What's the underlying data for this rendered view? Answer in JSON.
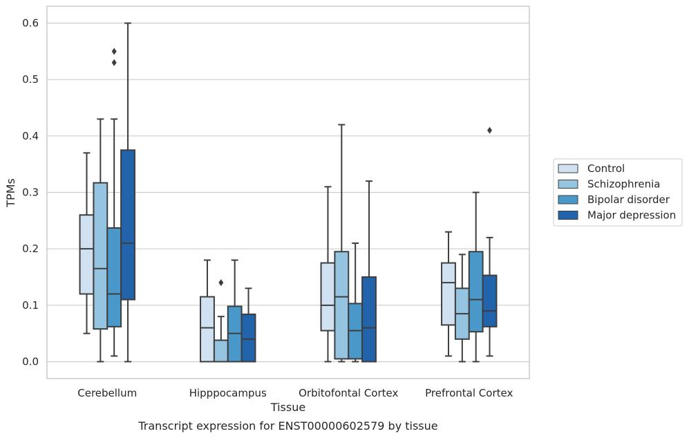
{
  "chart_data": {
    "type": "box",
    "xlabel": "Tissue",
    "ylabel": "TPMs",
    "caption": "Transcript expression for ENST00000602579 by tissue",
    "ylim": [
      -0.03,
      0.63
    ],
    "yticks": [
      0.0,
      0.1,
      0.2,
      0.3,
      0.4,
      0.5,
      0.6
    ],
    "ytick_labels": [
      "0.0",
      "0.1",
      "0.2",
      "0.3",
      "0.4",
      "0.5",
      "0.6"
    ],
    "grid": "horizontal",
    "legend_position": "outside-right",
    "categories": [
      "Cerebellum",
      "Hipppocampus",
      "Orbitofontal Cortex",
      "Prefrontal Cortex"
    ],
    "series": [
      {
        "name": "Control",
        "color": "#d0e1f2",
        "boxes": [
          {
            "whisker_low": 0.05,
            "q1": 0.12,
            "median": 0.2,
            "q3": 0.26,
            "whisker_high": 0.37,
            "outliers": []
          },
          {
            "whisker_low": 0.0,
            "q1": 0.0,
            "median": 0.06,
            "q3": 0.115,
            "whisker_high": 0.18,
            "outliers": []
          },
          {
            "whisker_low": 0.0,
            "q1": 0.055,
            "median": 0.1,
            "q3": 0.175,
            "whisker_high": 0.31,
            "outliers": []
          },
          {
            "whisker_low": 0.01,
            "q1": 0.065,
            "median": 0.14,
            "q3": 0.175,
            "whisker_high": 0.23,
            "outliers": []
          }
        ]
      },
      {
        "name": "Schizophrenia",
        "color": "#94c4df",
        "boxes": [
          {
            "whisker_low": 0.0,
            "q1": 0.058,
            "median": 0.165,
            "q3": 0.317,
            "whisker_high": 0.43,
            "outliers": []
          },
          {
            "whisker_low": 0.0,
            "q1": 0.0,
            "median": 0.038,
            "q3": 0.038,
            "whisker_high": 0.08,
            "outliers": [
              0.14
            ]
          },
          {
            "whisker_low": 0.0,
            "q1": 0.005,
            "median": 0.115,
            "q3": 0.195,
            "whisker_high": 0.42,
            "outliers": []
          },
          {
            "whisker_low": 0.0,
            "q1": 0.04,
            "median": 0.085,
            "q3": 0.13,
            "whisker_high": 0.19,
            "outliers": []
          }
        ]
      },
      {
        "name": "Bipolar disorder",
        "color": "#4a98c9",
        "boxes": [
          {
            "whisker_low": 0.01,
            "q1": 0.062,
            "median": 0.12,
            "q3": 0.237,
            "whisker_high": 0.43,
            "outliers": [
              0.55,
              0.53
            ]
          },
          {
            "whisker_low": 0.0,
            "q1": 0.0,
            "median": 0.05,
            "q3": 0.098,
            "whisker_high": 0.18,
            "outliers": []
          },
          {
            "whisker_low": 0.0,
            "q1": 0.005,
            "median": 0.055,
            "q3": 0.103,
            "whisker_high": 0.21,
            "outliers": []
          },
          {
            "whisker_low": 0.0,
            "q1": 0.053,
            "median": 0.11,
            "q3": 0.195,
            "whisker_high": 0.3,
            "outliers": []
          }
        ]
      },
      {
        "name": "Major depression",
        "color": "#2164ab",
        "boxes": [
          {
            "whisker_low": 0.0,
            "q1": 0.11,
            "median": 0.21,
            "q3": 0.375,
            "whisker_high": 0.6,
            "outliers": []
          },
          {
            "whisker_low": 0.0,
            "q1": 0.0,
            "median": 0.04,
            "q3": 0.084,
            "whisker_high": 0.13,
            "outliers": []
          },
          {
            "whisker_low": 0.0,
            "q1": 0.0,
            "median": 0.06,
            "q3": 0.15,
            "whisker_high": 0.32,
            "outliers": []
          },
          {
            "whisker_low": 0.01,
            "q1": 0.062,
            "median": 0.09,
            "q3": 0.153,
            "whisker_high": 0.22,
            "outliers": [
              0.41
            ]
          }
        ]
      }
    ]
  }
}
